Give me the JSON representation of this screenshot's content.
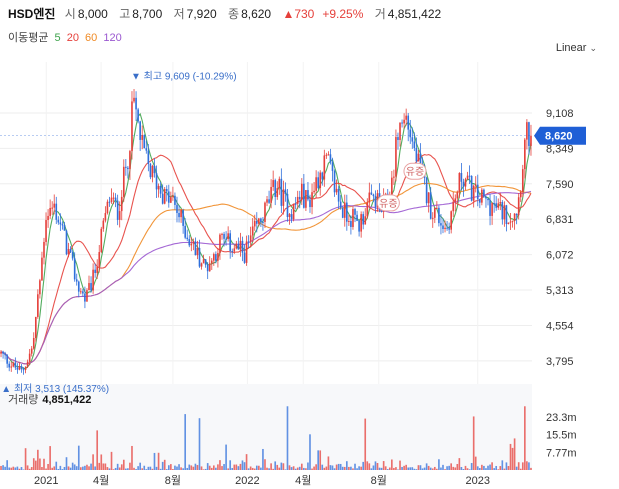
{
  "header": {
    "name": "HSD엔진",
    "open_label": "시",
    "open": "8,000",
    "high_label": "고",
    "high": "8,700",
    "low_label": "저",
    "low": "7,920",
    "close_label": "종",
    "close": "8,620",
    "change": "▲730",
    "change_pct": "+9.25%",
    "volume_label": "거",
    "volume": "4,851,422"
  },
  "legend": {
    "title": "이동평균",
    "items": [
      {
        "label": "5",
        "color": "#3fa34d"
      },
      {
        "label": "20",
        "color": "#e5403b"
      },
      {
        "label": "60",
        "color": "#f08a24"
      },
      {
        "label": "120",
        "color": "#9b59d0"
      }
    ]
  },
  "scale_select": {
    "value": "Linear"
  },
  "volume_header": {
    "label": "거래량",
    "value": "4,851,422"
  },
  "colors": {
    "up": "#e5403b",
    "down": "#2f6fdb",
    "last_price_bg": "#1f5fd6",
    "grid": "#eeeeee"
  },
  "chart_data": {
    "type": "candlestick",
    "price_axis": {
      "ticks": [
        "9,108",
        "8,349",
        "7,590",
        "6,831",
        "6,072",
        "5,313",
        "4,554",
        "3,795"
      ],
      "values": [
        9108,
        8349,
        7590,
        6831,
        6072,
        5313,
        4554,
        3795
      ],
      "ylim": [
        3300,
        10200
      ]
    },
    "volume_axis": {
      "ticks": [
        "23.3m",
        "15.5m",
        "7.77m"
      ],
      "values": [
        23.3,
        15.5,
        7.77
      ],
      "ylim": [
        0,
        29
      ]
    },
    "x_axis": {
      "ticks": [
        "2021",
        "4월",
        "8월",
        "2022",
        "4월",
        "8월",
        "2023"
      ],
      "positions": [
        0.087,
        0.19,
        0.325,
        0.465,
        0.57,
        0.712,
        0.898
      ]
    },
    "last_price": {
      "label": "8,620",
      "value": 8620
    },
    "annotations": {
      "high": {
        "text": "▼ 최고 9,609 (-10.29%)",
        "value": 9609,
        "at": 0.25
      },
      "low": {
        "text": "▲ 최저 3,513 (145.37%)",
        "value": 3513,
        "at": 0.04
      }
    },
    "events": [
      {
        "label": "유증",
        "at": 0.78,
        "value": 7860
      },
      {
        "label": "유증",
        "at": 0.73,
        "value": 7180
      }
    ],
    "price_path": [
      [
        0,
        3950
      ],
      [
        0.02,
        3700
      ],
      [
        0.04,
        3560
      ],
      [
        0.06,
        4100
      ],
      [
        0.075,
        5700
      ],
      [
        0.085,
        6950
      ],
      [
        0.1,
        7100
      ],
      [
        0.115,
        6600
      ],
      [
        0.13,
        6000
      ],
      [
        0.145,
        5400
      ],
      [
        0.16,
        5100
      ],
      [
        0.175,
        5600
      ],
      [
        0.19,
        6500
      ],
      [
        0.205,
        7300
      ],
      [
        0.22,
        7000
      ],
      [
        0.24,
        8200
      ],
      [
        0.25,
        9400
      ],
      [
        0.265,
        8400
      ],
      [
        0.28,
        7900
      ],
      [
        0.295,
        7600
      ],
      [
        0.31,
        7300
      ],
      [
        0.325,
        7200
      ],
      [
        0.34,
        6800
      ],
      [
        0.355,
        6400
      ],
      [
        0.37,
        6100
      ],
      [
        0.385,
        5800
      ],
      [
        0.4,
        6000
      ],
      [
        0.415,
        6400
      ],
      [
        0.43,
        6300
      ],
      [
        0.445,
        6200
      ],
      [
        0.46,
        6100
      ],
      [
        0.475,
        6500
      ],
      [
        0.49,
        6800
      ],
      [
        0.505,
        7200
      ],
      [
        0.52,
        7600
      ],
      [
        0.535,
        7200
      ],
      [
        0.55,
        7000
      ],
      [
        0.565,
        7400
      ],
      [
        0.58,
        7200
      ],
      [
        0.6,
        7800
      ],
      [
        0.615,
        8100
      ],
      [
        0.63,
        7500
      ],
      [
        0.645,
        7000
      ],
      [
        0.66,
        6900
      ],
      [
        0.675,
        6700
      ],
      [
        0.69,
        7100
      ],
      [
        0.705,
        7300
      ],
      [
        0.72,
        7000
      ],
      [
        0.735,
        7400
      ],
      [
        0.75,
        8800
      ],
      [
        0.765,
        9000
      ],
      [
        0.78,
        8300
      ],
      [
        0.795,
        7700
      ],
      [
        0.81,
        7100
      ],
      [
        0.825,
        6900
      ],
      [
        0.84,
        6600
      ],
      [
        0.855,
        7200
      ],
      [
        0.87,
        7800
      ],
      [
        0.885,
        7500
      ],
      [
        0.9,
        7300
      ],
      [
        0.915,
        7200
      ],
      [
        0.93,
        7100
      ],
      [
        0.945,
        7000
      ],
      [
        0.96,
        6900
      ],
      [
        0.975,
        7100
      ],
      [
        0.99,
        8620
      ]
    ],
    "ma_spans": [
      0.0,
      0.03,
      0.06,
      0.12
    ]
  }
}
